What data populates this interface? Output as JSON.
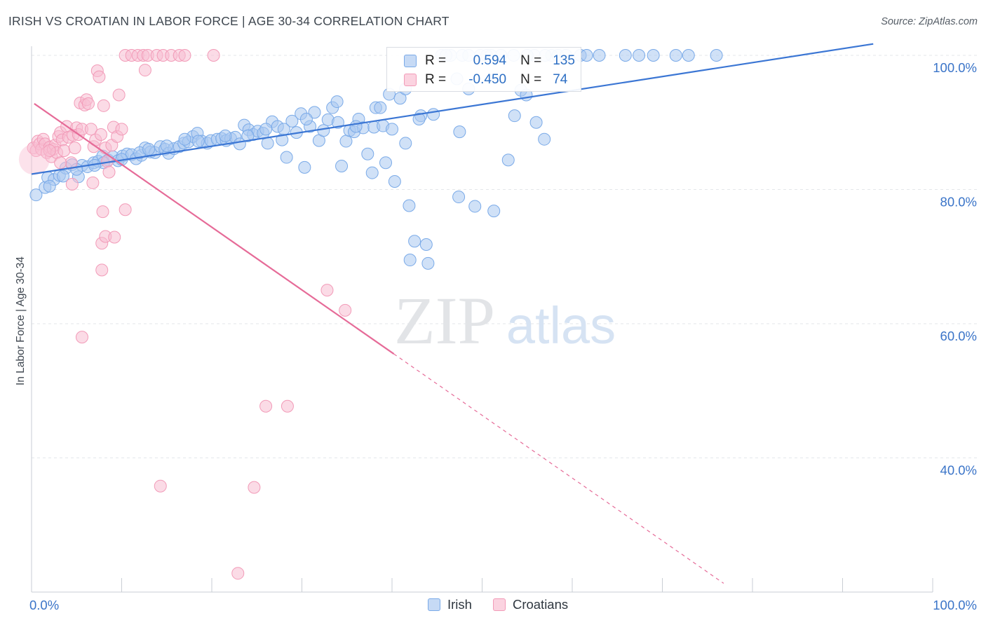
{
  "title": "IRISH VS CROATIAN IN LABOR FORCE | AGE 30-34 CORRELATION CHART",
  "source": "Source: ZipAtlas.com",
  "watermark": {
    "zip": "ZIP",
    "atlas": "atlas"
  },
  "legend_box": {
    "rows": [
      {
        "r_label": "R =",
        "r_value": "0.594",
        "n_label": "N =",
        "n_value": "135",
        "color": "#7aaae8"
      },
      {
        "r_label": "R =",
        "r_value": "-0.450",
        "n_label": "N =",
        "n_value": "74",
        "color": "#f29bb8"
      }
    ]
  },
  "bottom_legend": [
    {
      "label": "Irish",
      "color": "#7aaae8"
    },
    {
      "label": "Croatians",
      "color": "#f29bb8"
    }
  ],
  "chart_data": {
    "type": "scatter",
    "title": "IRISH VS CROATIAN IN LABOR FORCE | AGE 30-34 CORRELATION CHART",
    "xlabel": "",
    "ylabel": "In Labor Force | Age 30-34",
    "xlim": [
      0,
      100
    ],
    "ylim": [
      18,
      102
    ],
    "x_tick_labels": [
      "0.0%",
      "100.0%"
    ],
    "y_ticks": [
      40,
      60,
      80,
      100
    ],
    "y_tick_labels": [
      "40.0%",
      "60.0%",
      "80.0%",
      "100.0%"
    ],
    "grid": true,
    "legend_position": "top-center",
    "series": [
      {
        "name": "Irish",
        "color": "#7aaae8",
        "trend": {
          "x": [
            0,
            93.4
          ],
          "y": [
            82.3,
            101.7
          ],
          "dashed_to": null
        },
        "points": [
          [
            0.5,
            79.2
          ],
          [
            1.5,
            80.3
          ],
          [
            1.8,
            81.8
          ],
          [
            2.5,
            81.5
          ],
          [
            3.1,
            82.1
          ],
          [
            3.8,
            83.2
          ],
          [
            4.5,
            83.7
          ],
          [
            5.2,
            81.9
          ],
          [
            5.6,
            83.6
          ],
          [
            6.2,
            83.4
          ],
          [
            6.9,
            84.0
          ],
          [
            7.4,
            84.2
          ],
          [
            7.9,
            85.0
          ],
          [
            8.5,
            84.4
          ],
          [
            9.0,
            84.9
          ],
          [
            9.6,
            84.3
          ],
          [
            10.1,
            85.0
          ],
          [
            10.6,
            85.3
          ],
          [
            11.1,
            85.2
          ],
          [
            11.6,
            84.6
          ],
          [
            12.2,
            85.1
          ],
          [
            12.6,
            86.2
          ],
          [
            13.2,
            85.6
          ],
          [
            13.7,
            85.5
          ],
          [
            14.3,
            86.4
          ],
          [
            14.8,
            86.0
          ],
          [
            15.2,
            85.4
          ],
          [
            15.8,
            86.1
          ],
          [
            16.4,
            86.4
          ],
          [
            16.9,
            86.9
          ],
          [
            17.4,
            87.1
          ],
          [
            17.9,
            87.9
          ],
          [
            18.4,
            88.4
          ],
          [
            18.9,
            87.2
          ],
          [
            19.5,
            86.9
          ],
          [
            19.9,
            87.3
          ],
          [
            20.6,
            87.5
          ],
          [
            21.1,
            87.6
          ],
          [
            21.6,
            87.3
          ],
          [
            22.1,
            87.6
          ],
          [
            22.6,
            87.8
          ],
          [
            23.1,
            86.8
          ],
          [
            23.6,
            89.6
          ],
          [
            24.1,
            88.9
          ],
          [
            24.6,
            88.2
          ],
          [
            25.1,
            88.7
          ],
          [
            25.7,
            88.4
          ],
          [
            26.2,
            86.9
          ],
          [
            26.7,
            90.1
          ],
          [
            27.3,
            89.4
          ],
          [
            27.8,
            87.4
          ],
          [
            28.3,
            84.8
          ],
          [
            28.9,
            90.2
          ],
          [
            29.4,
            88.5
          ],
          [
            29.9,
            91.3
          ],
          [
            30.3,
            83.3
          ],
          [
            30.9,
            89.4
          ],
          [
            31.4,
            91.5
          ],
          [
            31.9,
            87.3
          ],
          [
            32.4,
            88.8
          ],
          [
            32.9,
            90.4
          ],
          [
            33.4,
            92.2
          ],
          [
            33.9,
            93.1
          ],
          [
            34.4,
            83.5
          ],
          [
            34.9,
            87.2
          ],
          [
            35.3,
            88.8
          ],
          [
            35.8,
            88.6
          ],
          [
            36.3,
            90.5
          ],
          [
            36.8,
            89.2
          ],
          [
            37.3,
            85.3
          ],
          [
            37.8,
            82.5
          ],
          [
            38.2,
            92.2
          ],
          [
            38.7,
            92.2
          ],
          [
            39.3,
            84.0
          ],
          [
            39.7,
            94.2
          ],
          [
            40.3,
            81.2
          ],
          [
            40.9,
            93.6
          ],
          [
            41.5,
            86.9
          ],
          [
            41.9,
            77.6
          ],
          [
            42.5,
            72.3
          ],
          [
            43.2,
            91.0
          ],
          [
            43.8,
            71.8
          ],
          [
            44.6,
            91.2
          ],
          [
            45.5,
            100
          ],
          [
            46.5,
            100
          ],
          [
            47.4,
            78.9
          ],
          [
            47.8,
            100
          ],
          [
            48.5,
            95.0
          ],
          [
            49.2,
            77.5
          ],
          [
            49.8,
            100
          ],
          [
            50.5,
            100
          ],
          [
            51.3,
            76.8
          ],
          [
            52.1,
            100
          ],
          [
            52.9,
            84.4
          ],
          [
            53.6,
            91.0
          ],
          [
            54.3,
            94.8
          ],
          [
            54.9,
            94.1
          ],
          [
            55.8,
            100
          ],
          [
            56.9,
            87.5
          ],
          [
            57.7,
            100
          ],
          [
            58.4,
            100
          ],
          [
            59.3,
            100
          ],
          [
            60.9,
            100
          ],
          [
            61.6,
            100
          ],
          [
            65.9,
            100
          ],
          [
            67.4,
            100
          ],
          [
            71.5,
            100
          ],
          [
            72.9,
            100
          ],
          [
            47.5,
            88.6
          ],
          [
            38.0,
            89.3
          ],
          [
            39.0,
            89.5
          ],
          [
            44.0,
            69.0
          ],
          [
            42.0,
            69.5
          ],
          [
            46.0,
            100
          ],
          [
            40.0,
            89.0
          ],
          [
            36.0,
            89.4
          ],
          [
            30.5,
            90.5
          ],
          [
            26.0,
            89.0
          ],
          [
            21.5,
            88.0
          ],
          [
            17.0,
            87.5
          ],
          [
            15.0,
            86.5
          ],
          [
            12.0,
            85.5
          ],
          [
            10.0,
            84.5
          ],
          [
            8.0,
            84.0
          ],
          [
            7.0,
            83.6
          ],
          [
            5.0,
            83.0
          ],
          [
            3.5,
            82.0
          ],
          [
            2.0,
            80.5
          ],
          [
            13.0,
            86.0
          ],
          [
            18.5,
            87.2
          ],
          [
            24.0,
            88.0
          ],
          [
            28.0,
            89.0
          ],
          [
            34.0,
            90.0
          ],
          [
            43.0,
            90.5
          ],
          [
            48.5,
            100
          ],
          [
            53.5,
            100
          ],
          [
            57.0,
            100
          ],
          [
            63.0,
            100
          ],
          [
            69.0,
            100
          ],
          [
            76.0,
            100
          ],
          [
            41.5,
            95.0
          ],
          [
            56.0,
            90.0
          ],
          [
            47.2,
            96.5
          ],
          [
            51.0,
            100
          ],
          [
            55.0,
            100
          ]
        ]
      },
      {
        "name": "Croatians",
        "color": "#f29bb8",
        "trend": {
          "x": [
            0.3,
            40.2
          ],
          "y": [
            92.8,
            55.5
          ],
          "dashed_to": [
            76.8,
            21.3
          ]
        },
        "points": [
          [
            0.2,
            86.2
          ],
          [
            0.5,
            85.8
          ],
          [
            0.7,
            87.2
          ],
          [
            0.9,
            86.8
          ],
          [
            1.1,
            86.0
          ],
          [
            1.3,
            87.5
          ],
          [
            1.5,
            86.8
          ],
          [
            1.7,
            85.5
          ],
          [
            2.0,
            86.3
          ],
          [
            2.2,
            84.9
          ],
          [
            2.4,
            86.0
          ],
          [
            2.6,
            86.6
          ],
          [
            2.8,
            85.5
          ],
          [
            3.0,
            87.9
          ],
          [
            3.2,
            88.5
          ],
          [
            3.4,
            87.4
          ],
          [
            3.6,
            85.8
          ],
          [
            3.9,
            89.4
          ],
          [
            4.1,
            87.8
          ],
          [
            4.4,
            84.0
          ],
          [
            4.6,
            88.1
          ],
          [
            4.8,
            86.2
          ],
          [
            5.0,
            89.2
          ],
          [
            5.2,
            88.2
          ],
          [
            5.4,
            92.9
          ],
          [
            5.6,
            89.0
          ],
          [
            5.9,
            92.6
          ],
          [
            6.1,
            93.4
          ],
          [
            6.3,
            92.8
          ],
          [
            6.6,
            89.0
          ],
          [
            6.9,
            86.4
          ],
          [
            7.1,
            87.4
          ],
          [
            7.3,
            97.7
          ],
          [
            7.5,
            96.8
          ],
          [
            7.7,
            88.2
          ],
          [
            8.0,
            92.5
          ],
          [
            8.2,
            86.2
          ],
          [
            8.4,
            84.2
          ],
          [
            8.6,
            82.6
          ],
          [
            8.9,
            86.6
          ],
          [
            9.1,
            89.3
          ],
          [
            9.5,
            87.9
          ],
          [
            9.7,
            94.1
          ],
          [
            10.0,
            89.0
          ],
          [
            10.4,
            100
          ],
          [
            11.1,
            100
          ],
          [
            11.8,
            100
          ],
          [
            12.4,
            100
          ],
          [
            12.9,
            100
          ],
          [
            13.9,
            100
          ],
          [
            14.6,
            100
          ],
          [
            15.5,
            100
          ],
          [
            16.4,
            100
          ],
          [
            17.0,
            100
          ],
          [
            20.2,
            100
          ],
          [
            12.6,
            97.8
          ],
          [
            7.9,
            76.7
          ],
          [
            7.8,
            72.0
          ],
          [
            8.2,
            73.0
          ],
          [
            9.2,
            72.9
          ],
          [
            10.4,
            77.0
          ],
          [
            7.8,
            68.0
          ],
          [
            5.6,
            58.0
          ],
          [
            32.8,
            65.0
          ],
          [
            34.8,
            62.0
          ],
          [
            26.0,
            47.7
          ],
          [
            28.4,
            47.7
          ],
          [
            14.3,
            35.8
          ],
          [
            24.7,
            35.6
          ],
          [
            22.9,
            22.8
          ],
          [
            6.8,
            81.0
          ],
          [
            4.5,
            80.8
          ],
          [
            3.2,
            84.0
          ],
          [
            2.0,
            85.8
          ]
        ]
      }
    ]
  }
}
